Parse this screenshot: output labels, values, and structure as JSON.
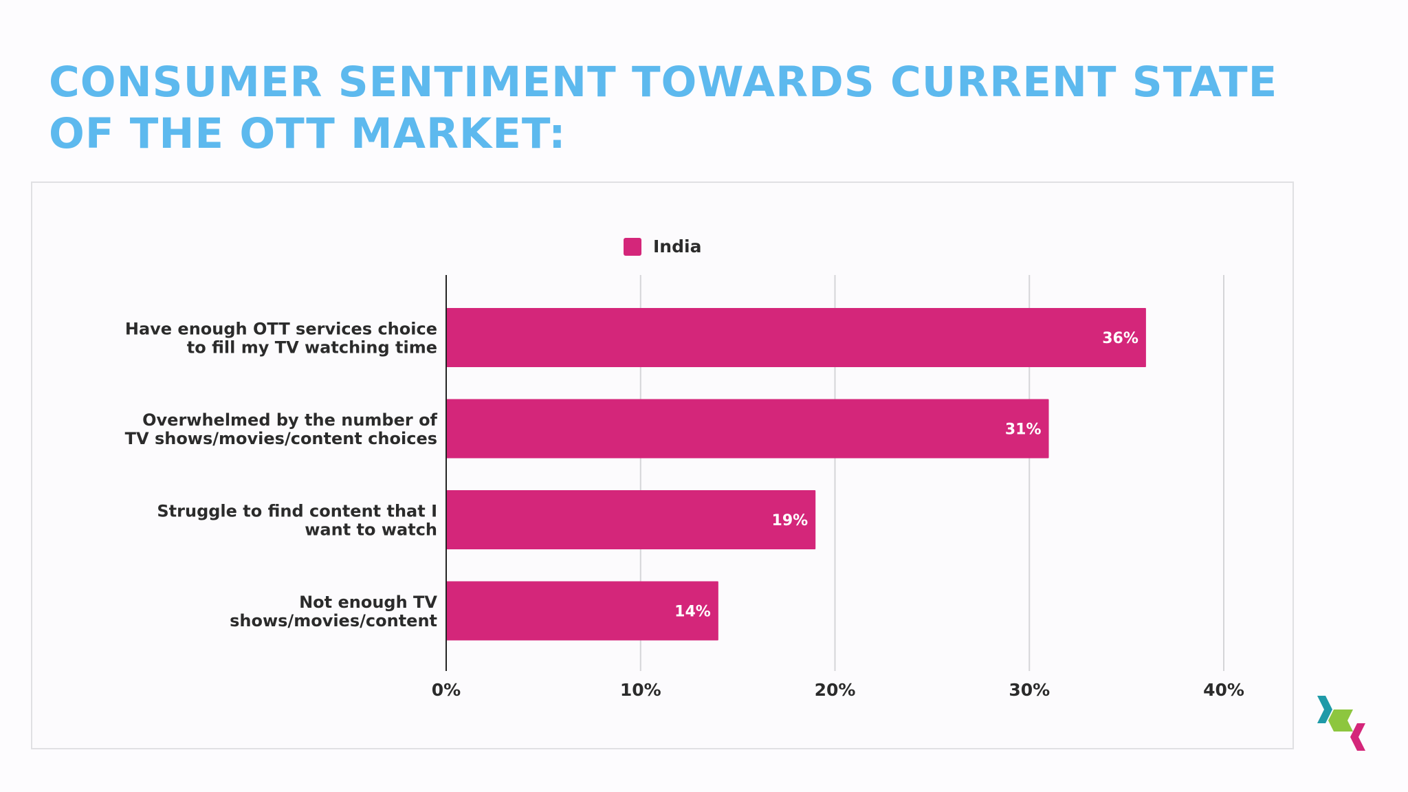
{
  "slide": {
    "title": "CONSUMER SENTIMENT TOWARDS CURRENT STATE OF THE OTT MARKET:"
  },
  "colors": {
    "title": "#5db9ee",
    "bar": "#d4267a",
    "label_text": "#2b2b2b",
    "grid": "#d5d5d8",
    "axis": "#222222",
    "bar_label": "#ffffff",
    "logo_teal": "#1f9aa8",
    "logo_green": "#8dc63f",
    "logo_pink": "#d4267a"
  },
  "logo": {
    "icon": "stacked-chevron-logo-icon"
  },
  "chart_data": {
    "type": "bar",
    "orientation": "horizontal",
    "title": "",
    "xlabel": "",
    "ylabel": "",
    "categories": [
      [
        "Have enough OTT services choice",
        "to fill my TV watching time"
      ],
      [
        "Overwhelmed by the number of",
        "TV shows/movies/content choices"
      ],
      [
        "Struggle to find content that I",
        "want to watch"
      ],
      [
        "Not enough TV",
        "shows/movies/content"
      ]
    ],
    "series": [
      {
        "name": "India",
        "values": [
          36,
          31,
          19,
          14
        ],
        "data_labels": [
          "36%",
          "31%",
          "19%",
          "14%"
        ]
      }
    ],
    "xlim": [
      0,
      40
    ],
    "xticks": [
      0,
      10,
      20,
      30,
      40
    ],
    "xtick_labels": [
      "0%",
      "10%",
      "20%",
      "30%",
      "40%"
    ],
    "grid": true,
    "legend": "top-center"
  }
}
